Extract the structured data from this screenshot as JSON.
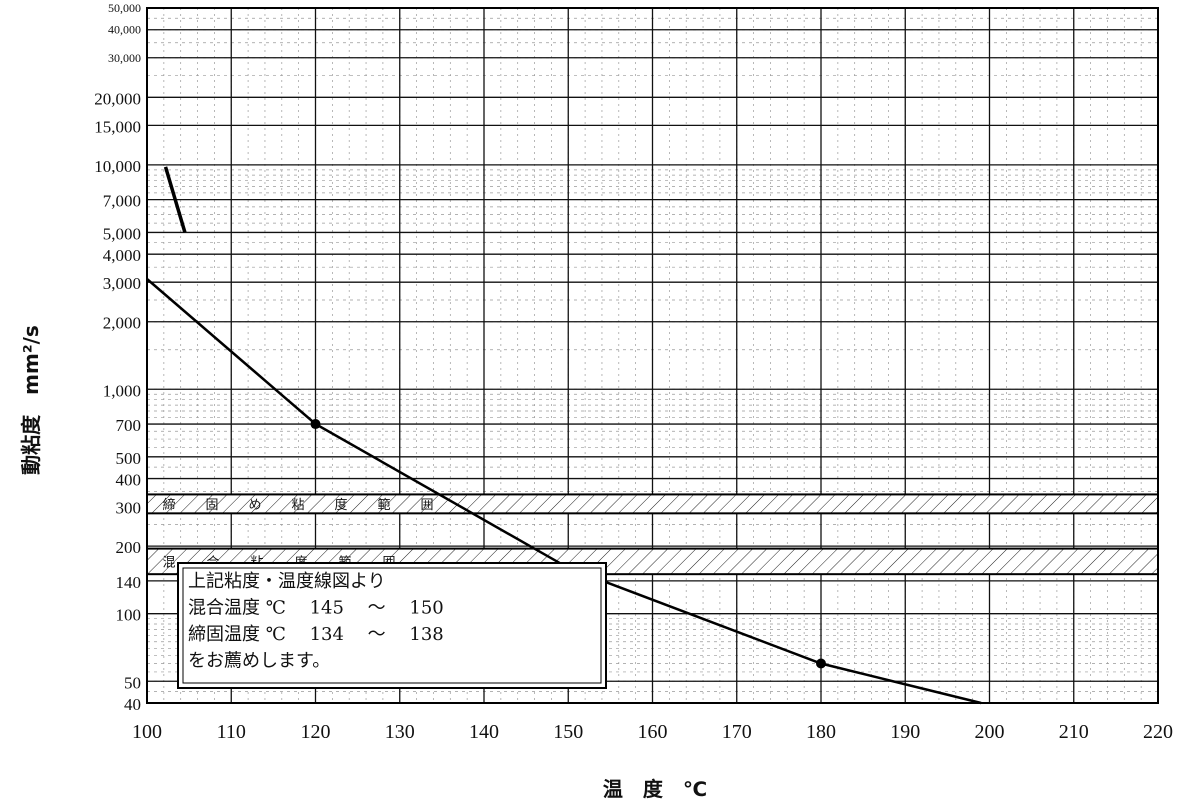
{
  "chart_data": {
    "type": "line",
    "x_label": "温　度　℃",
    "y_label": "動粘度　mm²/s",
    "x_range": [
      100,
      220
    ],
    "y_range": [
      40,
      50000
    ],
    "y_scale": "log",
    "x_ticks": [
      "100",
      "110",
      "120",
      "130",
      "140",
      "150",
      "160",
      "170",
      "180",
      "190",
      "200",
      "210",
      "220"
    ],
    "y_ticks": [
      {
        "v": 50000,
        "label": "50,000"
      },
      {
        "v": 40000,
        "label": "40,000"
      },
      {
        "v": 30000,
        "label": "30,000"
      },
      {
        "v": 20000,
        "label": "20,000"
      },
      {
        "v": 15000,
        "label": "15,000"
      },
      {
        "v": 10000,
        "label": "10,000"
      },
      {
        "v": 7000,
        "label": "7,000"
      },
      {
        "v": 5000,
        "label": "5,000"
      },
      {
        "v": 4000,
        "label": "4,000"
      },
      {
        "v": 3000,
        "label": "3,000"
      },
      {
        "v": 2000,
        "label": "2,000"
      },
      {
        "v": 1000,
        "label": "1,000"
      },
      {
        "v": 700,
        "label": "700"
      },
      {
        "v": 500,
        "label": "500"
      },
      {
        "v": 400,
        "label": "400"
      },
      {
        "v": 300,
        "label": "300"
      },
      {
        "v": 200,
        "label": "200"
      },
      {
        "v": 140,
        "label": "140"
      },
      {
        "v": 100,
        "label": "100"
      },
      {
        "v": 50,
        "label": "50"
      },
      {
        "v": 40,
        "label": "40"
      }
    ],
    "series": [
      {
        "x": [
          100,
          120,
          150,
          180,
          199
        ],
        "y": [
          3100,
          700,
          160,
          60,
          40
        ]
      }
    ],
    "points": [
      {
        "x": 120,
        "y": 700
      },
      {
        "x": 150,
        "y": 160
      },
      {
        "x": 180,
        "y": 60
      }
    ],
    "bands": [
      {
        "label": "締固め粘度範囲",
        "chars": [
          "締",
          "固",
          "め",
          "粘",
          "度",
          "範",
          "囲"
        ],
        "y_low": 280,
        "y_high": 340
      },
      {
        "label": "混合粘度範囲",
        "chars": [
          "混",
          "合",
          "粘",
          "度",
          "範",
          "囲"
        ],
        "y_low": 150,
        "y_high": 195
      }
    ],
    "annotation": {
      "lines": [
        "上記粘度・温度線図より",
        "混合温度 ℃　 145 　～ 　150",
        "締固温度 ℃　 134 　～ 　138",
        "をお薦めします。"
      ]
    },
    "grid": true,
    "legend": "none"
  }
}
